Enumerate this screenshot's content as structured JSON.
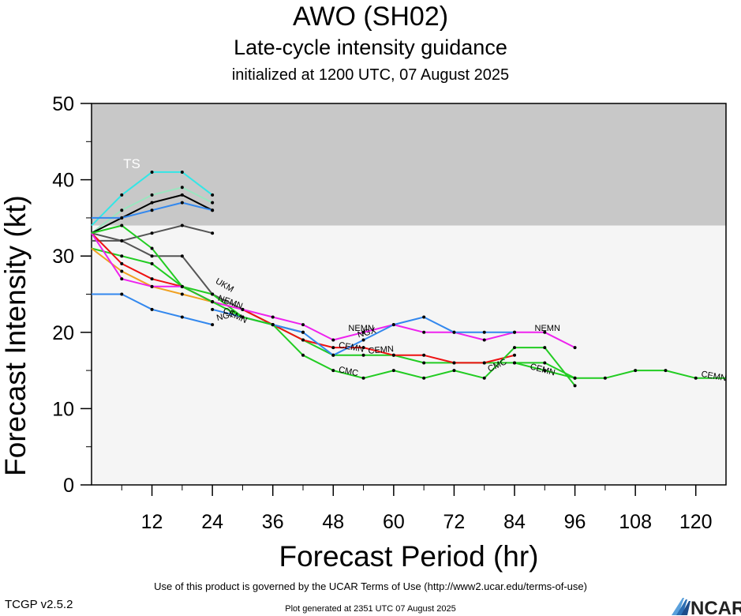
{
  "header": {
    "title": "AWO (SH02)",
    "subtitle": "Late-cycle intensity guidance",
    "initialized": "initialized at 1200 UTC, 07 August 2025"
  },
  "footer": {
    "terms": "Use of this product is governed by the UCAR Terms of Use (http://www2.ucar.edu/terms-of-use)",
    "generated": "Plot generated at 2351 UTC   07 August 2025",
    "version": "TCGP v2.5.2",
    "logo_text": "NCAR"
  },
  "colors": {
    "ts_band": "#c8c8c8",
    "plot_bg": "#f5f5f5",
    "ts_label": "#ffffff"
  },
  "chart_data": {
    "type": "line",
    "xlabel": "Forecast Period (hr)",
    "ylabel": "Forecast Intensity (kt)",
    "xlim": [
      0,
      126
    ],
    "ylim": [
      0,
      50
    ],
    "xticks": [
      12,
      24,
      36,
      48,
      60,
      72,
      84,
      96,
      108,
      120
    ],
    "yticks": [
      0,
      10,
      20,
      30,
      40,
      50
    ],
    "ts_threshold": 34,
    "band_labels": [
      "TS"
    ],
    "series": [
      {
        "color": "#33e6e6",
        "x": [
          0,
          6,
          12,
          18,
          24
        ],
        "y": [
          34,
          38,
          41,
          41,
          38
        ]
      },
      {
        "color": "#99e6c0",
        "x": [
          0,
          6,
          12,
          18,
          24
        ],
        "y": [
          33,
          36,
          38,
          39,
          37
        ]
      },
      {
        "color": "#000000",
        "x": [
          0,
          6,
          12,
          18,
          24
        ],
        "y": [
          33,
          35,
          37,
          38,
          36
        ]
      },
      {
        "color": "#3388ee",
        "x": [
          0,
          6,
          12,
          18,
          24
        ],
        "y": [
          35,
          35,
          36,
          37,
          36
        ]
      },
      {
        "color": "#555555",
        "x": [
          0,
          6,
          12,
          18,
          24
        ],
        "y": [
          32,
          32,
          33,
          34,
          33
        ]
      },
      {
        "color": "#3388ee",
        "x": [
          0,
          6,
          12,
          18,
          24
        ],
        "y": [
          25,
          25,
          23,
          22,
          21
        ]
      },
      {
        "color": "#555555",
        "x": [
          0,
          6,
          12,
          18,
          24,
          30,
          36,
          42
        ],
        "y": [
          33,
          32,
          30,
          30,
          25,
          23,
          21,
          20
        ]
      },
      {
        "color": "#22cc22",
        "x": [
          0,
          6,
          12,
          18,
          24,
          30,
          36,
          42,
          48,
          54,
          60,
          66,
          72,
          78,
          84,
          90,
          96
        ],
        "y": [
          31,
          30,
          29,
          26,
          25,
          22,
          21,
          19,
          17,
          17,
          17,
          16,
          16,
          16,
          16,
          16,
          14
        ]
      },
      {
        "color": "#ee1111",
        "x": [
          0,
          6,
          12,
          18,
          24,
          30,
          36,
          42,
          48,
          54,
          60,
          66,
          72,
          78,
          84
        ],
        "y": [
          33,
          29,
          27,
          26,
          24,
          23,
          21,
          19,
          18,
          18,
          17,
          17,
          16,
          16,
          17
        ]
      },
      {
        "color": "#f0a020",
        "x": [
          0,
          6,
          12,
          18,
          24
        ],
        "y": [
          31,
          28,
          26,
          25,
          24
        ]
      },
      {
        "color": "#ee22ee",
        "x": [
          0,
          6,
          12,
          18,
          24,
          30,
          36,
          42,
          48,
          54,
          60,
          66,
          72,
          78,
          84,
          90,
          96
        ],
        "y": [
          33,
          27,
          26,
          26,
          24,
          23,
          22,
          21,
          19,
          20,
          21,
          20,
          20,
          19,
          20,
          20,
          18
        ]
      },
      {
        "color": "#3388ee",
        "x": [
          24,
          30,
          36,
          42,
          48,
          54,
          60,
          66,
          72,
          78,
          84
        ],
        "y": [
          23,
          22,
          21,
          20,
          17,
          19,
          21,
          22,
          20,
          20,
          20
        ]
      },
      {
        "color": "#22cc22",
        "x": [
          0,
          6,
          12,
          18,
          24,
          30,
          36,
          42,
          48,
          54,
          60,
          66,
          72,
          78,
          84,
          90,
          96
        ],
        "y": [
          33,
          34,
          31,
          26,
          24,
          22,
          21,
          17,
          15,
          14,
          15,
          14,
          15,
          14,
          18,
          18,
          13
        ]
      },
      {
        "color": "#22cc22",
        "x": [
          84,
          90,
          96,
          102,
          108,
          114,
          120,
          126
        ],
        "y": [
          16,
          15,
          14,
          14,
          15,
          15,
          14,
          14
        ]
      }
    ],
    "annotations": [
      {
        "text": "UKM",
        "x": 24.5,
        "y": 26.5,
        "angle": 30
      },
      {
        "text": "NGX",
        "x": 25,
        "y": 21.5,
        "angle": -15
      },
      {
        "text": "CEMN",
        "x": 26,
        "y": 22.6,
        "angle": 25
      },
      {
        "text": "NEMN",
        "x": 25,
        "y": 24.2,
        "angle": 20
      },
      {
        "text": "CEMN",
        "x": 49,
        "y": 18,
        "angle": 10
      },
      {
        "text": "NEMN",
        "x": 51,
        "y": 20.2,
        "angle": 0
      },
      {
        "text": "NGX",
        "x": 53,
        "y": 19.3,
        "angle": -15
      },
      {
        "text": "CEMN",
        "x": 55,
        "y": 17.2,
        "angle": -5
      },
      {
        "text": "CMC",
        "x": 49,
        "y": 14.8,
        "angle": 12
      },
      {
        "text": "CMC",
        "x": 79,
        "y": 14.8,
        "angle": -25
      },
      {
        "text": "NEMN",
        "x": 88,
        "y": 20.2,
        "angle": 0
      },
      {
        "text": "CEMN",
        "x": 87,
        "y": 15.2,
        "angle": 15
      },
      {
        "text": "CEMN",
        "x": 121,
        "y": 14.2,
        "angle": 10
      }
    ]
  }
}
